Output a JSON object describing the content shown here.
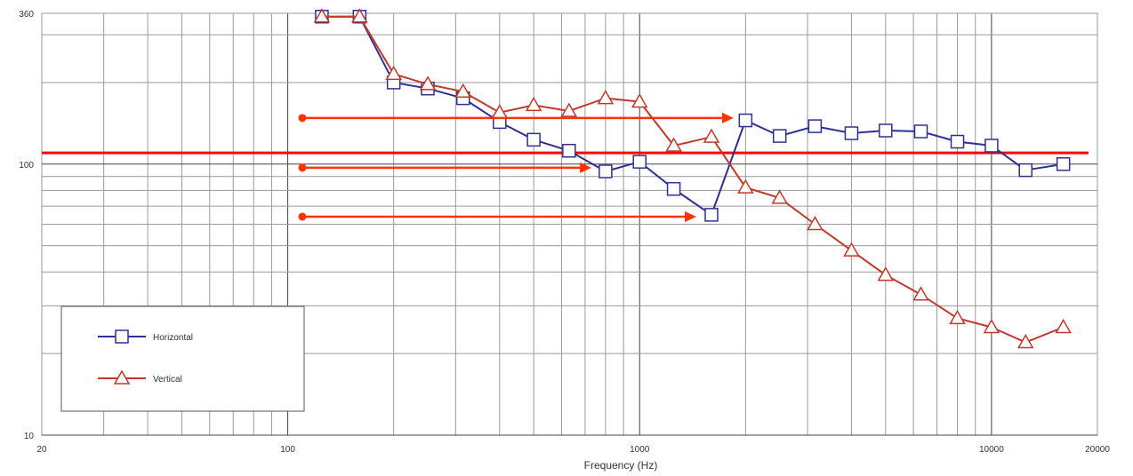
{
  "chart_data": {
    "type": "line",
    "xlabel": "Frequency (Hz)",
    "ylabel": "",
    "title": "",
    "x_scale": "log",
    "y_scale": "log",
    "xlim": [
      20,
      20000
    ],
    "ylim": [
      10,
      360
    ],
    "x_tick_labels": [
      {
        "value": 20,
        "label": "20"
      },
      {
        "value": 100,
        "label": "100"
      },
      {
        "value": 1000,
        "label": "1000"
      },
      {
        "value": 10000,
        "label": "10000"
      },
      {
        "value": 20000,
        "label": "20000"
      }
    ],
    "y_tick_labels": [
      {
        "value": 10,
        "label": "10"
      },
      {
        "value": 100,
        "label": "100"
      },
      {
        "value": 360,
        "label": "360"
      }
    ],
    "grid": true,
    "legend_position": "bottom-left",
    "series": [
      {
        "name": "Horizontal",
        "color": "#2e3192",
        "marker": "square",
        "x": [
          125,
          160,
          200,
          250,
          315,
          400,
          500,
          630,
          800,
          1000,
          1250,
          1600,
          2000,
          2500,
          3150,
          4000,
          5000,
          6300,
          8000,
          10000,
          12500,
          16000
        ],
        "y": [
          350,
          350,
          200,
          190,
          175,
          143,
          123,
          112,
          94,
          102,
          81,
          65,
          145,
          127,
          138,
          130,
          133,
          132,
          121,
          117,
          95,
          100
        ]
      },
      {
        "name": "Vertical",
        "color": "#c0392b",
        "marker": "triangle",
        "x": [
          125,
          160,
          200,
          250,
          315,
          400,
          500,
          630,
          800,
          1000,
          1250,
          1600,
          2000,
          2500,
          3150,
          4000,
          5000,
          6300,
          8000,
          10000,
          12500,
          16000
        ],
        "y": [
          350,
          350,
          215,
          197,
          185,
          155,
          165,
          157,
          175,
          170,
          117,
          126,
          82,
          75,
          60,
          48,
          39,
          33,
          27,
          25,
          22,
          25
        ]
      }
    ],
    "annotations": {
      "reference_line": {
        "y": 110,
        "color": "#ff0000"
      },
      "arrows": [
        {
          "y": 148,
          "x_start": 110,
          "x_end": 1850
        },
        {
          "y": 97,
          "x_start": 110,
          "x_end": 730
        },
        {
          "y": 64,
          "x_start": 110,
          "x_end": 1450
        }
      ],
      "arrow_color": "#ff3300"
    }
  }
}
